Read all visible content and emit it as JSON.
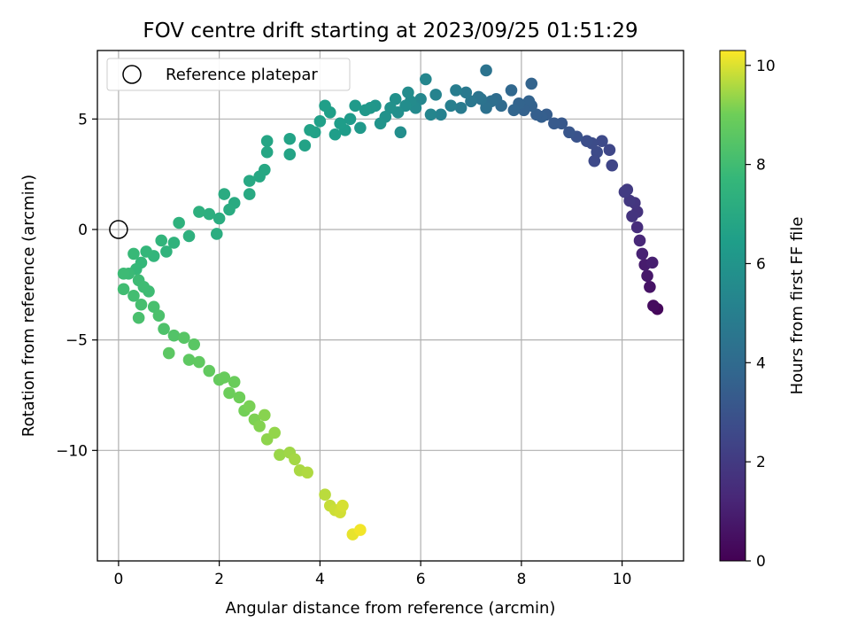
{
  "chart_data": {
    "type": "scatter",
    "title": "FOV centre drift starting at 2023/09/25 01:51:29",
    "xlabel": "Angular distance from reference (arcmin)",
    "ylabel": "Rotation from reference (arcmin)",
    "xlim": [
      -0.42,
      11.22
    ],
    "ylim": [
      -15.0,
      8.1
    ],
    "xticks": [
      0,
      2,
      4,
      6,
      8,
      10
    ],
    "yticks": [
      -10,
      -5,
      0,
      5
    ],
    "grid": true,
    "legend": {
      "position": "upper-left",
      "entries": [
        {
          "label": "Reference platepar",
          "marker": "open-circle"
        }
      ]
    },
    "reference_point": {
      "x": 0,
      "y": 0
    },
    "colorbar": {
      "label": "Hours from first FF file",
      "range": [
        0,
        10.3
      ],
      "ticks": [
        0,
        2,
        4,
        6,
        8,
        10
      ],
      "colormap": "viridis"
    },
    "series": [
      {
        "points": [
          {
            "x": 10.7,
            "y": -3.6,
            "t": 0.2
          },
          {
            "x": 10.62,
            "y": -3.45,
            "t": 0.35
          },
          {
            "x": 10.55,
            "y": -2.6,
            "t": 0.6
          },
          {
            "x": 10.5,
            "y": -2.1,
            "t": 0.75
          },
          {
            "x": 10.45,
            "y": -1.6,
            "t": 0.9
          },
          {
            "x": 10.6,
            "y": -1.5,
            "t": 1.0
          },
          {
            "x": 10.4,
            "y": -1.1,
            "t": 1.1
          },
          {
            "x": 10.35,
            "y": -0.5,
            "t": 1.3
          },
          {
            "x": 10.3,
            "y": 0.1,
            "t": 1.5
          },
          {
            "x": 10.3,
            "y": 0.8,
            "t": 1.7
          },
          {
            "x": 10.25,
            "y": 1.2,
            "t": 1.8
          },
          {
            "x": 10.15,
            "y": 1.3,
            "t": 1.9
          },
          {
            "x": 10.2,
            "y": 0.6,
            "t": 1.75
          },
          {
            "x": 10.1,
            "y": 1.8,
            "t": 2.0
          },
          {
            "x": 10.05,
            "y": 1.7,
            "t": 2.05
          },
          {
            "x": 9.8,
            "y": 2.9,
            "t": 2.4
          },
          {
            "x": 9.75,
            "y": 3.6,
            "t": 2.5
          },
          {
            "x": 9.6,
            "y": 4.0,
            "t": 2.6
          },
          {
            "x": 9.5,
            "y": 3.5,
            "t": 2.65
          },
          {
            "x": 9.4,
            "y": 3.9,
            "t": 2.7
          },
          {
            "x": 9.45,
            "y": 3.1,
            "t": 2.6
          },
          {
            "x": 9.3,
            "y": 4.0,
            "t": 2.8
          },
          {
            "x": 9.1,
            "y": 4.2,
            "t": 3.0
          },
          {
            "x": 8.95,
            "y": 4.4,
            "t": 3.1
          },
          {
            "x": 8.8,
            "y": 4.8,
            "t": 3.2
          },
          {
            "x": 8.65,
            "y": 4.8,
            "t": 3.3
          },
          {
            "x": 8.5,
            "y": 5.2,
            "t": 3.4
          },
          {
            "x": 8.4,
            "y": 5.1,
            "t": 3.5
          },
          {
            "x": 8.3,
            "y": 5.2,
            "t": 3.5
          },
          {
            "x": 8.2,
            "y": 5.6,
            "t": 3.6
          },
          {
            "x": 8.15,
            "y": 5.8,
            "t": 3.65
          },
          {
            "x": 8.2,
            "y": 6.6,
            "t": 3.7
          },
          {
            "x": 8.05,
            "y": 5.4,
            "t": 3.6
          },
          {
            "x": 7.95,
            "y": 5.7,
            "t": 3.7
          },
          {
            "x": 7.85,
            "y": 5.4,
            "t": 3.8
          },
          {
            "x": 7.8,
            "y": 6.3,
            "t": 3.85
          },
          {
            "x": 7.6,
            "y": 5.6,
            "t": 4.0
          },
          {
            "x": 7.5,
            "y": 5.9,
            "t": 4.1
          },
          {
            "x": 7.4,
            "y": 5.8,
            "t": 4.2
          },
          {
            "x": 7.3,
            "y": 5.5,
            "t": 4.3
          },
          {
            "x": 7.2,
            "y": 5.9,
            "t": 4.4
          },
          {
            "x": 7.15,
            "y": 6.0,
            "t": 4.45
          },
          {
            "x": 7.3,
            "y": 7.2,
            "t": 4.4
          },
          {
            "x": 7.0,
            "y": 5.8,
            "t": 4.6
          },
          {
            "x": 6.9,
            "y": 6.2,
            "t": 4.7
          },
          {
            "x": 6.8,
            "y": 5.5,
            "t": 4.8
          },
          {
            "x": 6.7,
            "y": 6.3,
            "t": 4.9
          },
          {
            "x": 6.6,
            "y": 5.6,
            "t": 5.0
          },
          {
            "x": 6.4,
            "y": 5.2,
            "t": 5.1
          },
          {
            "x": 6.3,
            "y": 6.1,
            "t": 5.2
          },
          {
            "x": 6.2,
            "y": 5.2,
            "t": 5.3
          },
          {
            "x": 6.1,
            "y": 6.8,
            "t": 5.35
          },
          {
            "x": 6.0,
            "y": 5.9,
            "t": 5.4
          },
          {
            "x": 5.9,
            "y": 5.5,
            "t": 5.5
          },
          {
            "x": 5.8,
            "y": 5.8,
            "t": 5.55
          },
          {
            "x": 5.75,
            "y": 6.2,
            "t": 5.6
          },
          {
            "x": 5.7,
            "y": 5.6,
            "t": 5.65
          },
          {
            "x": 5.6,
            "y": 4.4,
            "t": 5.7
          },
          {
            "x": 5.55,
            "y": 5.3,
            "t": 5.75
          },
          {
            "x": 5.5,
            "y": 5.9,
            "t": 5.8
          },
          {
            "x": 5.4,
            "y": 5.5,
            "t": 5.85
          },
          {
            "x": 5.3,
            "y": 5.1,
            "t": 5.9
          },
          {
            "x": 5.2,
            "y": 4.8,
            "t": 6.0
          },
          {
            "x": 5.1,
            "y": 5.6,
            "t": 6.05
          },
          {
            "x": 5.0,
            "y": 5.5,
            "t": 6.1
          },
          {
            "x": 4.9,
            "y": 5.4,
            "t": 6.15
          },
          {
            "x": 4.8,
            "y": 4.6,
            "t": 6.2
          },
          {
            "x": 4.7,
            "y": 5.6,
            "t": 6.25
          },
          {
            "x": 4.6,
            "y": 5.0,
            "t": 6.3
          },
          {
            "x": 4.5,
            "y": 4.5,
            "t": 6.35
          },
          {
            "x": 4.4,
            "y": 4.8,
            "t": 6.4
          },
          {
            "x": 4.3,
            "y": 4.3,
            "t": 6.45
          },
          {
            "x": 4.2,
            "y": 5.3,
            "t": 6.5
          },
          {
            "x": 4.1,
            "y": 5.6,
            "t": 6.5
          },
          {
            "x": 4.0,
            "y": 4.9,
            "t": 6.55
          },
          {
            "x": 3.9,
            "y": 4.4,
            "t": 6.6
          },
          {
            "x": 3.8,
            "y": 4.5,
            "t": 6.62
          },
          {
            "x": 3.7,
            "y": 3.8,
            "t": 6.65
          },
          {
            "x": 3.4,
            "y": 4.1,
            "t": 6.7
          },
          {
            "x": 3.4,
            "y": 3.4,
            "t": 6.72
          },
          {
            "x": 2.95,
            "y": 4.0,
            "t": 6.8
          },
          {
            "x": 2.95,
            "y": 3.5,
            "t": 6.85
          },
          {
            "x": 2.9,
            "y": 2.7,
            "t": 6.9
          },
          {
            "x": 2.8,
            "y": 2.4,
            "t": 6.92
          },
          {
            "x": 2.6,
            "y": 2.2,
            "t": 6.95
          },
          {
            "x": 2.6,
            "y": 1.6,
            "t": 7.0
          },
          {
            "x": 2.3,
            "y": 1.2,
            "t": 7.05
          },
          {
            "x": 2.2,
            "y": 0.9,
            "t": 7.1
          },
          {
            "x": 2.1,
            "y": 1.6,
            "t": 7.12
          },
          {
            "x": 2.0,
            "y": 0.5,
            "t": 7.15
          },
          {
            "x": 1.95,
            "y": -0.2,
            "t": 7.2
          },
          {
            "x": 1.8,
            "y": 0.7,
            "t": 7.25
          },
          {
            "x": 1.6,
            "y": 0.8,
            "t": 7.3
          },
          {
            "x": 1.4,
            "y": -0.3,
            "t": 7.35
          },
          {
            "x": 1.2,
            "y": 0.3,
            "t": 7.4
          },
          {
            "x": 1.1,
            "y": -0.6,
            "t": 7.45
          },
          {
            "x": 0.95,
            "y": -1.0,
            "t": 7.5
          },
          {
            "x": 0.85,
            "y": -0.5,
            "t": 7.55
          },
          {
            "x": 0.7,
            "y": -1.2,
            "t": 7.6
          },
          {
            "x": 0.55,
            "y": -1.0,
            "t": 7.65
          },
          {
            "x": 0.45,
            "y": -1.5,
            "t": 7.7
          },
          {
            "x": 0.35,
            "y": -1.8,
            "t": 7.75
          },
          {
            "x": 0.3,
            "y": -1.1,
            "t": 7.8
          },
          {
            "x": 0.2,
            "y": -2.0,
            "t": 7.85
          },
          {
            "x": 0.1,
            "y": -2.0,
            "t": 7.9
          },
          {
            "x": 0.4,
            "y": -2.3,
            "t": 7.92
          },
          {
            "x": 0.6,
            "y": -2.8,
            "t": 7.95
          },
          {
            "x": 0.5,
            "y": -2.6,
            "t": 7.95
          },
          {
            "x": 0.1,
            "y": -2.7,
            "t": 8.0
          },
          {
            "x": 0.3,
            "y": -3.0,
            "t": 8.05
          },
          {
            "x": 0.45,
            "y": -3.4,
            "t": 8.1
          },
          {
            "x": 0.7,
            "y": -3.5,
            "t": 8.15
          },
          {
            "x": 0.4,
            "y": -4.0,
            "t": 8.2
          },
          {
            "x": 0.8,
            "y": -3.9,
            "t": 8.25
          },
          {
            "x": 0.9,
            "y": -4.5,
            "t": 8.3
          },
          {
            "x": 1.1,
            "y": -4.8,
            "t": 8.4
          },
          {
            "x": 1.3,
            "y": -4.9,
            "t": 8.5
          },
          {
            "x": 1.5,
            "y": -5.2,
            "t": 8.55
          },
          {
            "x": 1.0,
            "y": -5.6,
            "t": 8.6
          },
          {
            "x": 1.4,
            "y": -5.9,
            "t": 8.65
          },
          {
            "x": 1.6,
            "y": -6.0,
            "t": 8.7
          },
          {
            "x": 1.8,
            "y": -6.4,
            "t": 8.75
          },
          {
            "x": 2.0,
            "y": -6.8,
            "t": 8.8
          },
          {
            "x": 2.1,
            "y": -6.7,
            "t": 8.85
          },
          {
            "x": 2.3,
            "y": -6.9,
            "t": 8.9
          },
          {
            "x": 2.2,
            "y": -7.4,
            "t": 8.95
          },
          {
            "x": 2.4,
            "y": -7.6,
            "t": 9.0
          },
          {
            "x": 2.5,
            "y": -8.2,
            "t": 9.05
          },
          {
            "x": 2.6,
            "y": -8.0,
            "t": 9.1
          },
          {
            "x": 2.7,
            "y": -8.6,
            "t": 9.15
          },
          {
            "x": 2.8,
            "y": -8.9,
            "t": 9.2
          },
          {
            "x": 2.9,
            "y": -8.4,
            "t": 9.25
          },
          {
            "x": 2.95,
            "y": -9.5,
            "t": 9.3
          },
          {
            "x": 3.1,
            "y": -9.2,
            "t": 9.35
          },
          {
            "x": 3.2,
            "y": -10.2,
            "t": 9.4
          },
          {
            "x": 3.4,
            "y": -10.1,
            "t": 9.45
          },
          {
            "x": 3.5,
            "y": -10.4,
            "t": 9.5
          },
          {
            "x": 3.6,
            "y": -10.9,
            "t": 9.55
          },
          {
            "x": 3.75,
            "y": -11.0,
            "t": 9.6
          },
          {
            "x": 4.1,
            "y": -12.0,
            "t": 9.7
          },
          {
            "x": 4.2,
            "y": -12.5,
            "t": 9.8
          },
          {
            "x": 4.3,
            "y": -12.7,
            "t": 9.85
          },
          {
            "x": 4.4,
            "y": -12.8,
            "t": 9.9
          },
          {
            "x": 4.45,
            "y": -12.5,
            "t": 9.95
          },
          {
            "x": 4.65,
            "y": -13.8,
            "t": 10.1
          },
          {
            "x": 4.8,
            "y": -13.6,
            "t": 10.2
          }
        ]
      }
    ]
  }
}
